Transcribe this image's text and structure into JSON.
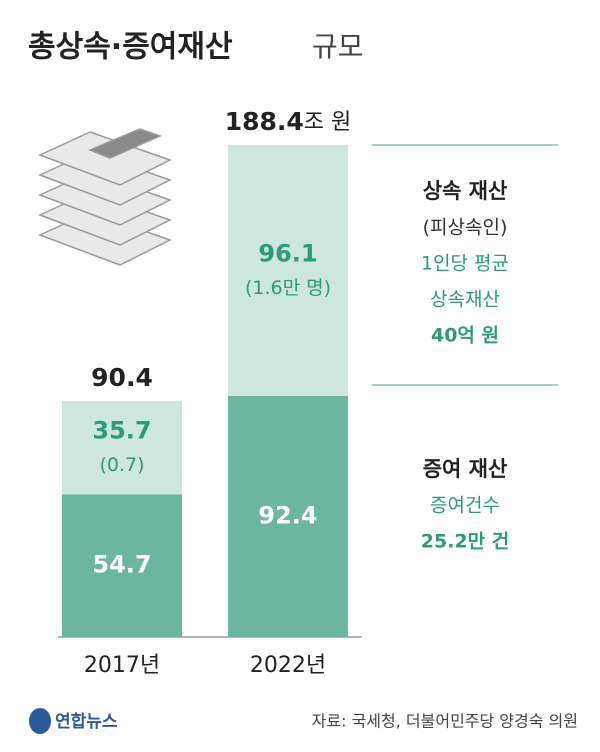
{
  "chart_data": {
    "type": "stacked-bar",
    "title": "총상속·증여재산",
    "title_suffix": "규모",
    "categories": [
      "2017년",
      "2022년"
    ],
    "series": [
      {
        "name": "증여 재산",
        "color": "#6cb5a1",
        "values": [
          54.7,
          92.4
        ],
        "notes": [
          "증여건수",
          "25.2만 건"
        ]
      },
      {
        "name": "상속 재산",
        "color": "#cde6de",
        "values": [
          35.7,
          96.1
        ],
        "sub_labels": [
          "(0.7)",
          "(1.6만 명)"
        ],
        "notes": [
          "(피상속인)",
          "1인당 평균",
          "상속재산",
          "40억 원"
        ]
      }
    ],
    "totals": [
      90.4,
      188.4
    ],
    "total_unit": "조 원",
    "source": "자료: 국세청, 더불어민주당 양경숙 의원",
    "logo": "연합뉴스"
  }
}
